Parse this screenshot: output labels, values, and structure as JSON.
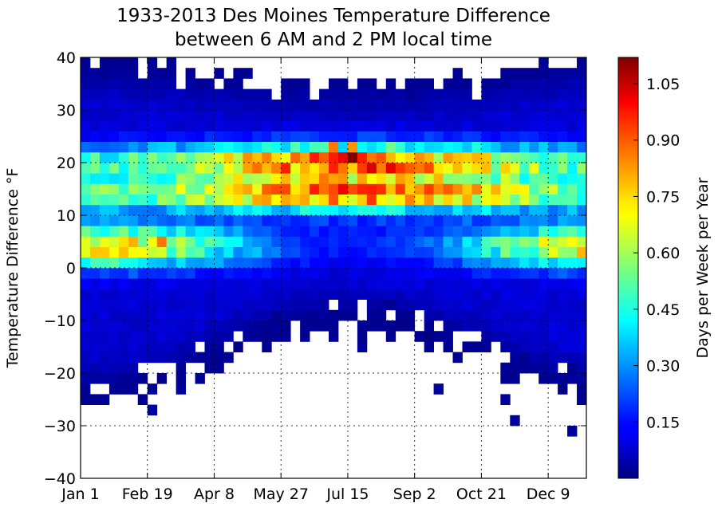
{
  "chart_data": {
    "type": "heatmap",
    "title": "1933-2013 Des Moines Temperature Difference",
    "subtitle": "between 6 AM and 2 PM local time",
    "xlabel": "",
    "ylabel": "Temperature Difference °F",
    "colorbar_label": "Days per Week per Year",
    "colormap": "jet",
    "grid": true,
    "x_unit": "week of year",
    "x_range": [
      1,
      53
    ],
    "y_range": [
      -40,
      40
    ],
    "y_bin": 2,
    "color_range": [
      0,
      1.12
    ],
    "x_ticks": [
      {
        "week": 1,
        "label": "Jan 1"
      },
      {
        "week": 8,
        "label": "Feb 19"
      },
      {
        "week": 15,
        "label": "Apr 8"
      },
      {
        "week": 22,
        "label": "May 27"
      },
      {
        "week": 29,
        "label": "Jul 15"
      },
      {
        "week": 36,
        "label": "Sep 2"
      },
      {
        "week": 43,
        "label": "Oct 21"
      },
      {
        "week": 50,
        "label": "Dec 9"
      }
    ],
    "y_ticks": [
      {
        "value": 40,
        "label": "40"
      },
      {
        "value": 30,
        "label": "30"
      },
      {
        "value": 20,
        "label": "20"
      },
      {
        "value": 10,
        "label": "10"
      },
      {
        "value": 0,
        "label": "0"
      },
      {
        "value": -10,
        "label": "−10"
      },
      {
        "value": -20,
        "label": "−20"
      },
      {
        "value": -30,
        "label": "−30"
      },
      {
        "value": -40,
        "label": "−40"
      }
    ],
    "colorbar_ticks": [
      {
        "value": 1.05,
        "label": "1.05"
      },
      {
        "value": 0.9,
        "label": "0.90"
      },
      {
        "value": 0.75,
        "label": "0.75"
      },
      {
        "value": 0.6,
        "label": "0.60"
      },
      {
        "value": 0.45,
        "label": "0.45"
      },
      {
        "value": 0.3,
        "label": "0.30"
      },
      {
        "value": 0.15,
        "label": "0.15"
      }
    ],
    "density_profile": {
      "peaks": [
        {
          "center": 20,
          "width": 3.5,
          "winter": 0.38,
          "summer": 0.78
        },
        {
          "center": 14,
          "width": 3,
          "winter": 0.38,
          "summer": 0.7
        },
        {
          "center": 4,
          "width": 4,
          "winter": 0.62,
          "summer": 0.05
        }
      ],
      "upper_edge": {
        "winter": 37,
        "summer": 33
      },
      "lower_edge": {
        "winter": -22,
        "summer": -8
      },
      "hotspots": [
        {
          "week": 29,
          "y": 20,
          "value": 1.12
        },
        {
          "week": 28,
          "y": 20,
          "value": 1.0
        },
        {
          "week": 27,
          "y": 20,
          "value": 0.95
        },
        {
          "week": 30,
          "y": 20,
          "value": 0.95
        },
        {
          "week": 26,
          "y": 20,
          "value": 0.88
        },
        {
          "week": 31,
          "y": 20,
          "value": 0.85
        },
        {
          "week": 24,
          "y": 20,
          "value": 0.8
        },
        {
          "week": 33,
          "y": 20,
          "value": 0.78
        },
        {
          "week": 27,
          "y": 22,
          "value": 0.85
        },
        {
          "week": 29,
          "y": 22,
          "value": 0.82
        },
        {
          "week": 25,
          "y": 14,
          "value": 0.95
        },
        {
          "week": 27,
          "y": 14,
          "value": 0.9
        },
        {
          "week": 29,
          "y": 14,
          "value": 0.9
        },
        {
          "week": 31,
          "y": 14,
          "value": 0.95
        },
        {
          "week": 26,
          "y": 16,
          "value": 0.85
        },
        {
          "week": 28,
          "y": 16,
          "value": 0.82
        },
        {
          "week": 30,
          "y": 16,
          "value": 0.8
        },
        {
          "week": 9,
          "y": 4,
          "value": 0.85
        },
        {
          "week": 53,
          "y": 2,
          "value": 0.78
        },
        {
          "week": 52,
          "y": 4,
          "value": 0.7
        }
      ]
    }
  }
}
